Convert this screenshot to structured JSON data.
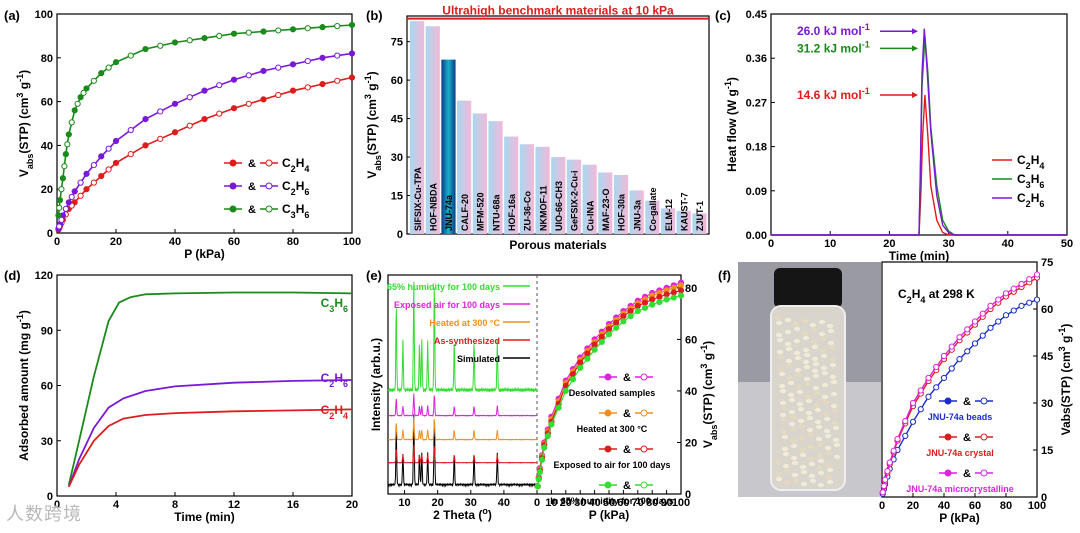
{
  "watermark": "人数跨境",
  "chart_data": [
    {
      "id": "a",
      "panel_label": "(a)",
      "type": "line",
      "xlabel": "P (kPa)",
      "ylabel_parts": [
        "V",
        "abs",
        "(STP) (cm",
        "3",
        " g",
        "-1",
        ")"
      ],
      "xlim": [
        0,
        100
      ],
      "ylim": [
        0,
        100
      ],
      "xticks": [
        0,
        20,
        40,
        60,
        80,
        100
      ],
      "yticks": [
        0,
        20,
        40,
        60,
        80,
        100
      ],
      "legend_mid": "&",
      "series": [
        {
          "name": "C2H4",
          "label_parts": [
            "C",
            "2",
            "H",
            "4"
          ],
          "color": "#dd1c1c",
          "x": [
            0.5,
            1,
            2,
            4,
            6,
            10,
            15,
            20,
            30,
            40,
            50,
            60,
            70,
            80,
            90,
            100
          ],
          "y": [
            1.5,
            3,
            6,
            11,
            14,
            20,
            26,
            32,
            40,
            46,
            52,
            57,
            61,
            65,
            68,
            71
          ]
        },
        {
          "name": "C2H6",
          "label_parts": [
            "C",
            "2",
            "H",
            "6"
          ],
          "color": "#7a18d8",
          "x": [
            0.5,
            1,
            2,
            4,
            6,
            10,
            15,
            20,
            30,
            40,
            50,
            60,
            70,
            80,
            90,
            100
          ],
          "y": [
            2,
            4,
            8,
            14,
            19,
            27,
            35,
            42,
            52,
            59,
            65,
            70,
            74,
            77,
            80,
            82
          ]
        },
        {
          "name": "C3H6",
          "label_parts": [
            "C",
            "3",
            "H",
            "6"
          ],
          "color": "#1a8a1a",
          "x": [
            0.5,
            1,
            2,
            3,
            4,
            6,
            8,
            10,
            15,
            20,
            30,
            40,
            50,
            60,
            70,
            80,
            90,
            100
          ],
          "y": [
            8,
            15,
            25,
            36,
            45,
            56,
            62,
            66,
            73,
            78,
            84,
            87,
            89,
            91,
            92,
            93,
            94,
            95
          ]
        }
      ]
    },
    {
      "id": "b",
      "panel_label": "(b)",
      "type": "bar",
      "xlabel": "Porous materials",
      "ylabel_parts": [
        "V",
        "abs",
        "(STP) (cm",
        "3",
        " g",
        "-1",
        ")"
      ],
      "ylim": [
        0,
        85
      ],
      "yticks": [
        0,
        15,
        30,
        45,
        60,
        75
      ],
      "benchmark_label": "Ultrahigh benchmark materials at 10 kPa",
      "benchmark_value": 84,
      "highlight": "JNU-74a",
      "categories": [
        "SIFSIX-Cu-TPA",
        "HOF-NBDA",
        "JNU-74a",
        "CALF-20",
        "MFM-520",
        "NTU-68a",
        "HOF-16a",
        "ZU-36-Co",
        "NKMOF-11",
        "UIO-66-CH3",
        "GeFSIX-2-Cu-i",
        "Cu-INA",
        "MAF-23-O",
        "HOF-30a",
        "JNU-3a",
        "Co-gallate",
        "ELM-12",
        "KAUST-7",
        "ZJUT-1"
      ],
      "values": [
        83,
        81,
        68,
        52,
        47,
        44,
        38,
        35,
        34,
        30,
        29,
        27,
        24,
        23,
        17,
        13,
        10,
        9,
        8
      ]
    },
    {
      "id": "c",
      "panel_label": "(c)",
      "type": "line",
      "xlabel": "Time (min)",
      "ylabel": "Heat flow (W g",
      "ylabel_sup": "-1",
      "ylabel_end": ")",
      "xlim": [
        0,
        50
      ],
      "ylim": [
        0,
        0.45
      ],
      "xticks": [
        0,
        10,
        20,
        30,
        40,
        50
      ],
      "yticks": [
        "0.00",
        "0.09",
        "0.18",
        "0.27",
        "0.36",
        "0.45"
      ],
      "annotations": [
        {
          "text": "26.0 kJ mol",
          "sup": "-1",
          "color": "#7a18d8",
          "y": 0.415
        },
        {
          "text": "31.2 kJ mol",
          "sup": "-1",
          "color": "#1a8a1a",
          "y": 0.38
        },
        {
          "text": "14.6 kJ mol",
          "sup": "-1",
          "color": "#dd1c1c",
          "y": 0.285
        }
      ],
      "series": [
        {
          "name": "C2H4",
          "label_parts": [
            "C",
            "2",
            "H",
            "4"
          ],
          "color": "#dd1c1c",
          "x": [
            0,
            25,
            25.3,
            25.6,
            26,
            26.5,
            27,
            28,
            29,
            30,
            50
          ],
          "y": [
            0,
            0,
            0.08,
            0.2,
            0.285,
            0.2,
            0.1,
            0.03,
            0.005,
            0,
            0
          ]
        },
        {
          "name": "C3H6",
          "label_parts": [
            "C",
            "3",
            "H",
            "6"
          ],
          "color": "#1a8a1a",
          "x": [
            0,
            25,
            25.2,
            25.5,
            26,
            26.5,
            27,
            28,
            29,
            30,
            31,
            50
          ],
          "y": [
            0,
            0,
            0.1,
            0.3,
            0.405,
            0.33,
            0.22,
            0.1,
            0.03,
            0.008,
            0,
            0
          ]
        },
        {
          "name": "C2H6",
          "label_parts": [
            "C",
            "2",
            "H",
            "6"
          ],
          "color": "#7a18d8",
          "x": [
            0,
            25,
            25.2,
            25.5,
            25.9,
            26.4,
            27,
            28,
            29,
            30,
            31,
            50
          ],
          "y": [
            0,
            0,
            0.12,
            0.33,
            0.42,
            0.33,
            0.21,
            0.08,
            0.02,
            0.005,
            0,
            0
          ]
        }
      ]
    },
    {
      "id": "d",
      "panel_label": "(d)",
      "type": "line",
      "xlabel": "Time (min)",
      "ylabel": "Adsorbed amount (mg g",
      "ylabel_sup": "-1",
      "ylabel_end": ")",
      "xlim": [
        0,
        20
      ],
      "ylim": [
        0,
        120
      ],
      "xticks": [
        0,
        4,
        8,
        12,
        16,
        20
      ],
      "yticks": [
        0,
        30,
        60,
        90,
        120
      ],
      "series": [
        {
          "name": "C3H6",
          "label_parts": [
            "C",
            "3",
            "H",
            "6"
          ],
          "color": "#1a8a1a",
          "x": [
            0.8,
            1.5,
            2.5,
            3.5,
            4.2,
            5,
            6,
            8,
            12,
            16,
            20
          ],
          "y": [
            6,
            30,
            65,
            95,
            105,
            108,
            109.5,
            110,
            110.5,
            110.5,
            110
          ]
        },
        {
          "name": "C2H6",
          "label_parts": [
            "C",
            "2",
            "H",
            "6"
          ],
          "color": "#7a18d8",
          "x": [
            0.8,
            1.5,
            2.5,
            3.5,
            4.5,
            6,
            8,
            12,
            16,
            20
          ],
          "y": [
            5,
            20,
            37,
            48,
            53,
            57,
            59.5,
            61.5,
            62.5,
            63
          ]
        },
        {
          "name": "C2H4",
          "label_parts": [
            "C",
            "2",
            "H",
            "4"
          ],
          "color": "#dd1c1c",
          "x": [
            0.8,
            1.5,
            2.5,
            3.5,
            4.5,
            6,
            8,
            12,
            16,
            20
          ],
          "y": [
            5,
            17,
            30,
            38,
            42,
            44,
            45,
            46,
            46.5,
            47
          ]
        }
      ]
    },
    {
      "id": "e",
      "panel_label": "(e)",
      "type": "line",
      "left_xlabel": "2 Theta (",
      "left_xlabel_sup": "o",
      "left_xlabel_end": ")",
      "left_ylabel": "Intensity (arb.u.)",
      "left_xticks": [
        10,
        20,
        30,
        40
      ],
      "left_xlim": [
        5,
        50
      ],
      "xrd_legend": [
        {
          "text": "65% humidity for 100 days",
          "color": "#33dd33"
        },
        {
          "text": "Exposed air for 100 days",
          "color": "#dd22dd"
        },
        {
          "text": "Heated at 300 °C",
          "color": "#f0901a"
        },
        {
          "text": "As-synthesized",
          "color": "#dd1c1c"
        },
        {
          "text": "Simulated",
          "color": "#000000"
        }
      ],
      "xrd_peaks": [
        7.5,
        9.5,
        12.8,
        14.5,
        15.2,
        17,
        19,
        25,
        31,
        38
      ],
      "right_xlabel": "P (kPa)",
      "right_ylabel_parts": [
        "V",
        "abs",
        "(STP) (cm",
        "3",
        " g",
        "-1",
        ")"
      ],
      "right_xticks": [
        0,
        10,
        20,
        30,
        40,
        50,
        60,
        70,
        80,
        90,
        100
      ],
      "right_yticks": [
        0,
        20,
        40,
        60,
        80
      ],
      "right_xlim": [
        0,
        100
      ],
      "right_ylim": [
        0,
        85
      ],
      "legend_mid": "&",
      "iso_legend": [
        {
          "text": "Desolvated samples",
          "color": "#dd22dd"
        },
        {
          "text": "Heated at 300 °C",
          "color": "#f0901a"
        },
        {
          "text": "Exposed to air for 100 days",
          "color": "#dd1c1c"
        },
        {
          "text": "In 65% humidity for 100 days",
          "color": "#33dd33"
        }
      ],
      "series": [
        {
          "name": "Desolvated samples",
          "color": "#dd22dd",
          "x": [
            0.5,
            2,
            5,
            10,
            20,
            30,
            40,
            50,
            60,
            70,
            80,
            90,
            100
          ],
          "y": [
            3,
            10,
            20,
            30,
            44,
            53,
            60,
            66,
            71,
            75,
            78,
            80,
            82
          ]
        },
        {
          "name": "Heated at 300 °C",
          "color": "#f0901a",
          "x": [
            0.5,
            2,
            5,
            10,
            20,
            30,
            40,
            50,
            60,
            70,
            80,
            90,
            100
          ],
          "y": [
            3,
            9.5,
            19.5,
            29,
            43,
            52,
            59,
            65,
            70,
            74,
            77,
            79,
            81
          ]
        },
        {
          "name": "Exposed to air for 100 days",
          "color": "#dd1c1c",
          "x": [
            0.5,
            2,
            5,
            10,
            20,
            30,
            40,
            50,
            60,
            70,
            80,
            90,
            100
          ],
          "y": [
            3,
            9,
            19,
            28,
            42,
            51,
            58,
            64,
            69,
            73,
            75.5,
            77.5,
            79
          ]
        },
        {
          "name": "In 65% humidity for 100 days",
          "color": "#33dd33",
          "x": [
            0.5,
            2,
            5,
            10,
            20,
            30,
            40,
            50,
            60,
            70,
            80,
            90,
            100
          ],
          "y": [
            3,
            8.5,
            18,
            27,
            40,
            49,
            56,
            62,
            67,
            71,
            73.5,
            75.5,
            77
          ]
        }
      ]
    },
    {
      "id": "f",
      "panel_label": "(f)",
      "type": "line",
      "title_parts": [
        "C",
        "2",
        "H",
        "4",
        " at 298 K"
      ],
      "xlabel": "P (kPa)",
      "ylabel_parts": [
        "Vabs(STP) (cm",
        "3",
        " g",
        "-1",
        ")"
      ],
      "xlim": [
        0,
        100
      ],
      "ylim": [
        0,
        75
      ],
      "xticks": [
        0,
        20,
        40,
        60,
        80,
        100
      ],
      "yticks": [
        0,
        15,
        30,
        45,
        60,
        75
      ],
      "legend_mid": "&",
      "photo_alt": "vial of JNU-74a beads",
      "series": [
        {
          "name": "JNU-74a beads",
          "color": "#1a2ccc",
          "x": [
            0.5,
            2,
            5,
            10,
            20,
            30,
            40,
            50,
            60,
            70,
            80,
            90,
            100
          ],
          "y": [
            1,
            4,
            9,
            15,
            24,
            32,
            38,
            44,
            49,
            54,
            58,
            61,
            63
          ]
        },
        {
          "name": "JNU-74a crystal",
          "color": "#dd1c1c",
          "x": [
            0.5,
            2,
            5,
            10,
            20,
            30,
            40,
            50,
            60,
            70,
            80,
            90,
            100
          ],
          "y": [
            1.5,
            5,
            10.5,
            18,
            29,
            37,
            44,
            50,
            55,
            60,
            64,
            67,
            70
          ]
        },
        {
          "name": "JNU-74a microcrystalline",
          "color": "#dd22dd",
          "x": [
            0.5,
            2,
            5,
            10,
            20,
            30,
            40,
            50,
            60,
            70,
            80,
            90,
            100
          ],
          "y": [
            1.5,
            5.5,
            11,
            18.5,
            30,
            38,
            45,
            51,
            56,
            61,
            65,
            68,
            71
          ]
        }
      ]
    }
  ]
}
